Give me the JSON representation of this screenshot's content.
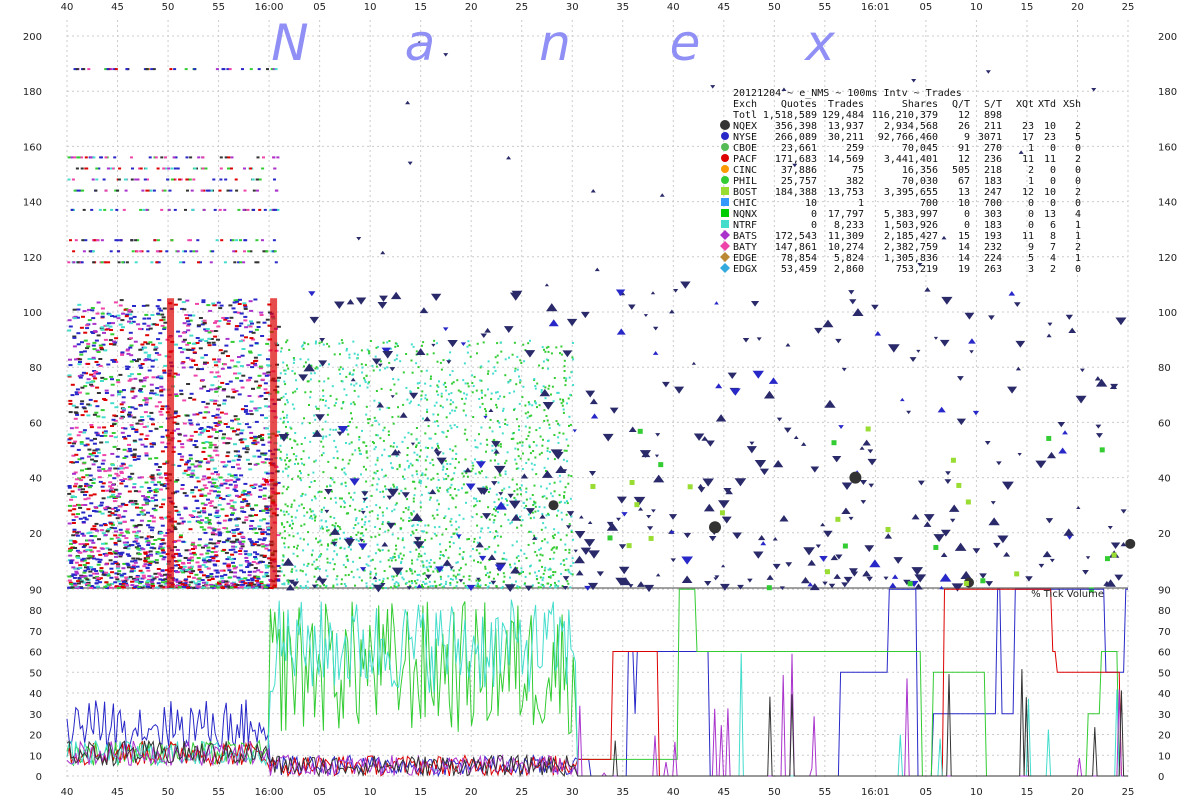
{
  "chart_data": [
    {
      "type": "scatter",
      "title": "20121204 ~ e_NMS ~ 100ms Intv ~ Trades",
      "watermark": [
        "N",
        "a",
        "n",
        "e",
        "x"
      ],
      "x_ticks": [
        "40",
        "45",
        "50",
        "55",
        "16:00",
        "05",
        "10",
        "15",
        "20",
        "25",
        "30",
        "35",
        "40",
        "45",
        "50",
        "55",
        "16:01",
        "05",
        "10",
        "15",
        "20",
        "25"
      ],
      "y_ticks": [
        20,
        40,
        60,
        80,
        100,
        120,
        140,
        160,
        180,
        200
      ],
      "y_baseline_label": "90",
      "ylim": [
        0,
        200
      ],
      "grid": true,
      "legend_placement": "top-right",
      "legend_columns": [
        "Exch",
        "Quotes",
        "Trades",
        "Shares",
        "Q/T",
        "S/T",
        "XQt",
        "XTd",
        "XSh"
      ],
      "legend_rows": [
        {
          "exch": "Totl",
          "marker": "none",
          "color": "#000000",
          "quotes": "1,518,589",
          "trades": "129,484",
          "shares": "116,210,379",
          "qt": "12",
          "st": "898",
          "xqt": "",
          "xtd": "",
          "xsh": ""
        },
        {
          "exch": "NQEX",
          "marker": "circle",
          "color": "#333333",
          "quotes": "356,398",
          "trades": "13,937",
          "shares": "2,934,568",
          "qt": "26",
          "st": "211",
          "xqt": "23",
          "xtd": "10",
          "xsh": "2"
        },
        {
          "exch": "NYSE",
          "marker": "circle",
          "color": "#2828c8",
          "quotes": "266,089",
          "trades": "30,211",
          "shares": "92,766,460",
          "qt": "9",
          "st": "3071",
          "xqt": "17",
          "xtd": "23",
          "xsh": "5"
        },
        {
          "exch": "CBOE",
          "marker": "circle",
          "color": "#55bb55",
          "quotes": "23,661",
          "trades": "259",
          "shares": "70,045",
          "qt": "91",
          "st": "270",
          "xqt": "1",
          "xtd": "0",
          "xsh": "0"
        },
        {
          "exch": "PACF",
          "marker": "circle",
          "color": "#dd0000",
          "quotes": "171,683",
          "trades": "14,569",
          "shares": "3,441,401",
          "qt": "12",
          "st": "236",
          "xqt": "11",
          "xtd": "11",
          "xsh": "2"
        },
        {
          "exch": "CINC",
          "marker": "circle",
          "color": "#ff9900",
          "quotes": "37,886",
          "trades": "75",
          "shares": "16,356",
          "qt": "505",
          "st": "218",
          "xqt": "2",
          "xtd": "0",
          "xsh": "0"
        },
        {
          "exch": "PHIL",
          "marker": "circle",
          "color": "#33cc33",
          "quotes": "25,757",
          "trades": "382",
          "shares": "70,030",
          "qt": "67",
          "st": "183",
          "xqt": "1",
          "xtd": "0",
          "xsh": "0"
        },
        {
          "exch": "BOST",
          "marker": "square",
          "color": "#99dd33",
          "quotes": "184,388",
          "trades": "13,753",
          "shares": "3,395,655",
          "qt": "13",
          "st": "247",
          "xqt": "12",
          "xtd": "10",
          "xsh": "2"
        },
        {
          "exch": "CHIC",
          "marker": "square",
          "color": "#3399ff",
          "quotes": "10",
          "trades": "1",
          "shares": "700",
          "qt": "10",
          "st": "700",
          "xqt": "0",
          "xtd": "0",
          "xsh": "0"
        },
        {
          "exch": "NQNX",
          "marker": "square",
          "color": "#00cc00",
          "quotes": "0",
          "trades": "17,797",
          "shares": "5,383,997",
          "qt": "0",
          "st": "303",
          "xqt": "0",
          "xtd": "13",
          "xsh": "4"
        },
        {
          "exch": "NTRF",
          "marker": "square",
          "color": "#44ddcc",
          "quotes": "0",
          "trades": "8,233",
          "shares": "1,503,926",
          "qt": "0",
          "st": "183",
          "xqt": "0",
          "xtd": "6",
          "xsh": "1"
        },
        {
          "exch": "BATS",
          "marker": "diamond",
          "color": "#aa33cc",
          "quotes": "172,543",
          "trades": "11,309",
          "shares": "2,185,427",
          "qt": "15",
          "st": "193",
          "xqt": "11",
          "xtd": "8",
          "xsh": "1"
        },
        {
          "exch": "BATY",
          "marker": "diamond",
          "color": "#ee44aa",
          "quotes": "147,861",
          "trades": "10,274",
          "shares": "2,382,759",
          "qt": "14",
          "st": "232",
          "xqt": "9",
          "xtd": "7",
          "xsh": "2"
        },
        {
          "exch": "EDGE",
          "marker": "diamond",
          "color": "#bb8833",
          "quotes": "78,854",
          "trades": "5,824",
          "shares": "1,305,836",
          "qt": "14",
          "st": "224",
          "xqt": "5",
          "xtd": "4",
          "xsh": "1"
        },
        {
          "exch": "EDGX",
          "marker": "diamond",
          "color": "#33aadd",
          "quotes": "53,459",
          "trades": "2,860",
          "shares": "753,219",
          "qt": "19",
          "st": "263",
          "xqt": "3",
          "xtd": "2",
          "xsh": "0"
        }
      ]
    },
    {
      "type": "line",
      "title": "% Tick Volume",
      "x_ticks": [
        "40",
        "45",
        "50",
        "55",
        "16:00",
        "05",
        "10",
        "15",
        "20",
        "25",
        "30",
        "35",
        "40",
        "45",
        "50",
        "55",
        "16:01",
        "05",
        "10",
        "15",
        "20",
        "25"
      ],
      "y_ticks": [
        0,
        10,
        20,
        30,
        40,
        50,
        60,
        70,
        80,
        90
      ],
      "ylim": [
        0,
        90
      ],
      "grid": true,
      "series_colors": [
        "#2828c8",
        "#33cc33",
        "#dd0000",
        "#44ddcc",
        "#aa33cc",
        "#333333"
      ]
    }
  ]
}
